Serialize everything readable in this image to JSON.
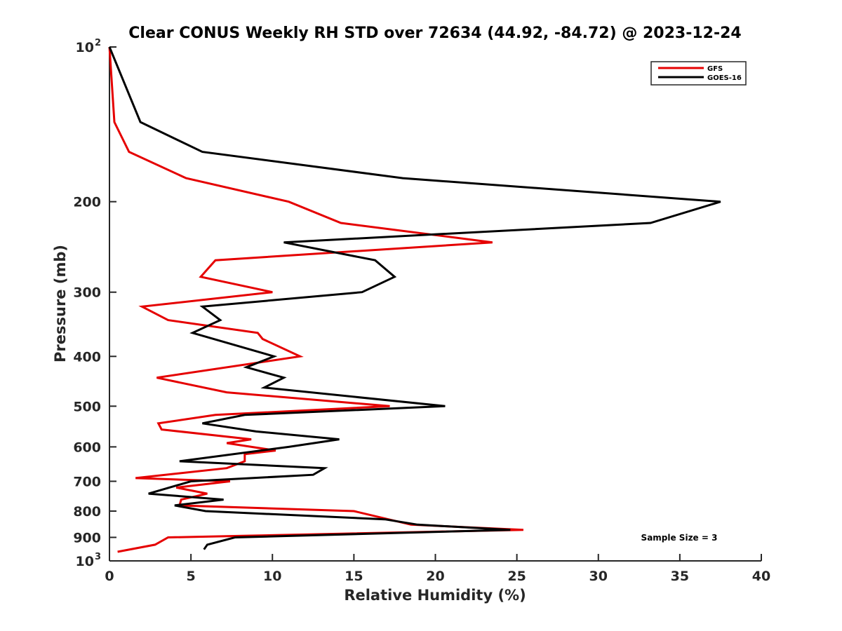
{
  "chart_data": {
    "type": "line",
    "title": "Clear CONUS Weekly RH STD over 72634 (44.92, -84.72) @ 2023-12-24",
    "xlabel": "Relative Humidity (%)",
    "ylabel": "Pressure (mb)",
    "xlim": [
      0,
      40
    ],
    "ylim": [
      100,
      1000
    ],
    "yscale": "log",
    "yreversed": true,
    "xticks": [
      0,
      5,
      10,
      15,
      20,
      25,
      30,
      35,
      40
    ],
    "xtick_labels": [
      "0",
      "5",
      "10",
      "15",
      "20",
      "25",
      "30",
      "35",
      "40"
    ],
    "yticks": [
      100,
      200,
      300,
      400,
      500,
      600,
      700,
      800,
      900,
      1000
    ],
    "ytick_labels": [
      "10",
      "200",
      "300",
      "400",
      "500",
      "600",
      "700",
      "800",
      "900",
      "10"
    ],
    "ytick_exponents": {
      "100": "2",
      "1000": "3"
    },
    "grid": false,
    "legend_position": "top-right",
    "annotation": "Sample Size = 3",
    "series": [
      {
        "name": "GFS",
        "color": "#e50000",
        "pressure": [
          100,
          140,
          160,
          180,
          200,
          220,
          240,
          260,
          280,
          300,
          320,
          340,
          360,
          370,
          400,
          440,
          470,
          500,
          520,
          540,
          555,
          580,
          590,
          610,
          620,
          640,
          660,
          690,
          700,
          720,
          740,
          760,
          780,
          800,
          850,
          870,
          900,
          930,
          960
        ],
        "values": [
          0.0,
          0.3,
          1.2,
          4.7,
          11.0,
          14.2,
          23.5,
          6.5,
          5.6,
          10.0,
          2.0,
          3.6,
          9.1,
          9.4,
          11.7,
          2.9,
          7.2,
          17.2,
          6.5,
          3.0,
          3.2,
          8.7,
          7.2,
          10.2,
          8.3,
          8.3,
          7.2,
          1.6,
          7.4,
          4.1,
          6.0,
          4.4,
          4.3,
          15.0,
          18.5,
          25.4,
          3.6,
          2.8,
          0.5
        ]
      },
      {
        "name": "GOES-16",
        "color": "#000000",
        "pressure": [
          100,
          140,
          160,
          180,
          200,
          220,
          240,
          260,
          280,
          300,
          320,
          340,
          360,
          400,
          420,
          440,
          460,
          500,
          520,
          540,
          560,
          580,
          600,
          640,
          660,
          680,
          700,
          740,
          760,
          780,
          800,
          830,
          850,
          870,
          900,
          930,
          950
        ],
        "values": [
          0.0,
          1.9,
          5.7,
          18.0,
          37.5,
          33.2,
          10.7,
          16.3,
          17.5,
          15.5,
          5.7,
          6.8,
          5.1,
          10.1,
          8.4,
          10.7,
          9.5,
          20.6,
          8.3,
          5.7,
          9.0,
          14.1,
          11.0,
          4.3,
          13.2,
          12.5,
          5.0,
          2.4,
          7.0,
          4.0,
          5.9,
          16.9,
          18.9,
          24.6,
          7.7,
          6.0,
          5.8
        ]
      }
    ]
  }
}
